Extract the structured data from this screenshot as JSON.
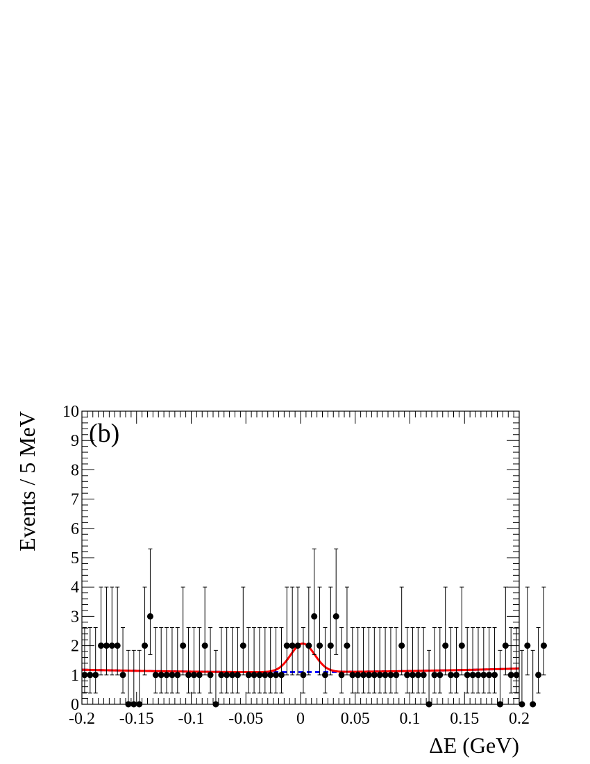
{
  "chart_data": {
    "type": "scatter",
    "panel_label": "(b)",
    "xlabel": "ΔE  (GeV)",
    "ylabel": "Events / 5 MeV",
    "xlim": [
      -0.2,
      0.2
    ],
    "ylim": [
      0,
      10
    ],
    "x_tick_labels": [
      "-0.2",
      "-0.15",
      "-0.1",
      "-0.05",
      "0",
      "0.05",
      "0.1",
      "0.15",
      "0.2"
    ],
    "x_tick_values": [
      -0.2,
      -0.15,
      -0.1,
      -0.05,
      0,
      0.05,
      0.1,
      0.15,
      0.2
    ],
    "y_tick_labels": [
      "0",
      "1",
      "2",
      "3",
      "4",
      "5",
      "6",
      "7",
      "8",
      "9",
      "10"
    ],
    "y_tick_values": [
      0,
      1,
      2,
      3,
      4,
      5,
      6,
      7,
      8,
      9,
      10
    ],
    "grid": false,
    "legend": "none",
    "bins": {
      "x_start": -0.1975,
      "step": 0.005,
      "counts": [
        1,
        1,
        1,
        2,
        2,
        2,
        2,
        1,
        0,
        0,
        0,
        2,
        3,
        1,
        1,
        1,
        1,
        1,
        2,
        1,
        1,
        1,
        2,
        1,
        0,
        1,
        1,
        1,
        1,
        2,
        1,
        1,
        1,
        1,
        1,
        1,
        1,
        2,
        2,
        2,
        1,
        2,
        3,
        2,
        1,
        2,
        3,
        1,
        2,
        1,
        1,
        1,
        1,
        1,
        1,
        1,
        1,
        1,
        2,
        1,
        1,
        1,
        1,
        0,
        1,
        1,
        2,
        1,
        1,
        2,
        1,
        1,
        1,
        1,
        1,
        1,
        0,
        2,
        1,
        1,
        0,
        2,
        0,
        1,
        2
      ]
    },
    "fit_curves": {
      "total": {
        "color": "#ff0000",
        "style": "solid",
        "background": {
          "slope": 0.1,
          "curvature": 2.5,
          "offset": 1.1
        },
        "signal": {
          "mean": 0.002,
          "sigma": 0.011,
          "amplitude": 0.97
        }
      },
      "background": {
        "color": "#0000ff",
        "style": "dashed",
        "background": {
          "slope": 0.1,
          "curvature": 2.5,
          "offset": 1.1
        }
      }
    }
  }
}
